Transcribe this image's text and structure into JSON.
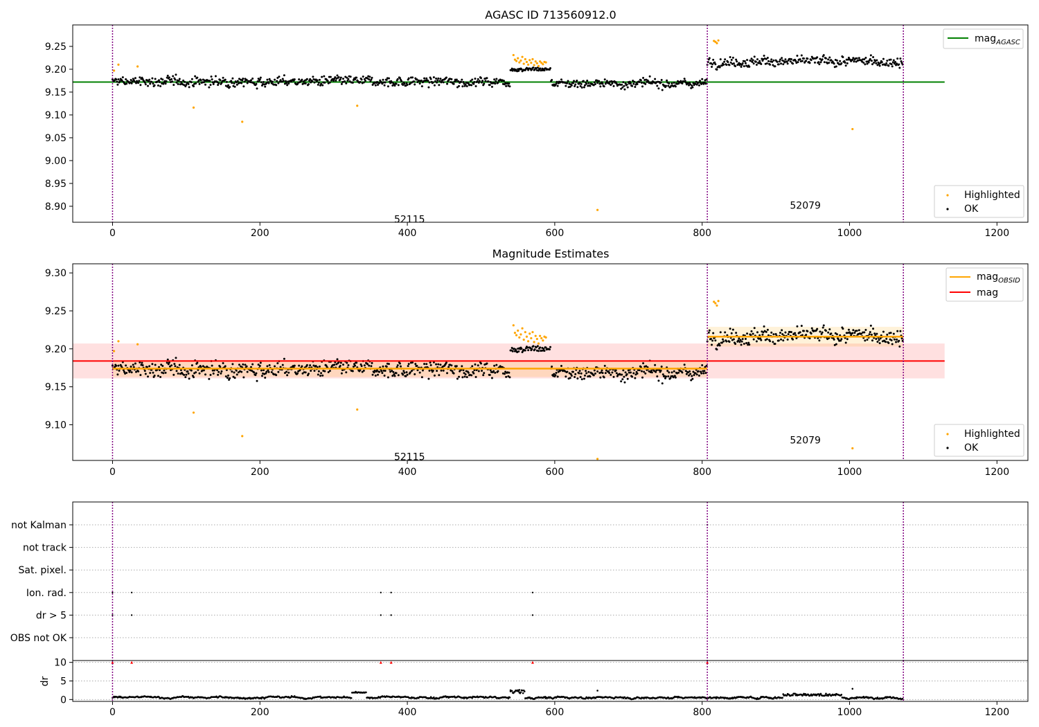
{
  "colors": {
    "ok": "#000000",
    "highlighted": "#ffa500",
    "mag_agasc_line": "#008000",
    "mag_obsid_line": "#ffa500",
    "mag_line": "#ff0000",
    "obsid_boundary": "#800080",
    "dr_flag": "#ff0000"
  },
  "chart_data": [
    {
      "type": "scatter",
      "title": "AGASC ID 713560912.0",
      "xlabel": "",
      "ylabel": "",
      "xlim": [
        -54,
        1242
      ],
      "ylim": [
        8.865,
        9.297
      ],
      "xticks": [
        0,
        200,
        400,
        600,
        800,
        1000,
        1200
      ],
      "yticks": [
        8.9,
        8.95,
        9.0,
        9.05,
        9.1,
        9.15,
        9.2,
        9.25
      ],
      "ytick_labels": [
        "8.90",
        "8.95",
        "9.00",
        "9.05",
        "9.10",
        "9.15",
        "9.20",
        "9.25"
      ],
      "obsid_boundaries": [
        0,
        807,
        1073
      ],
      "obsid_labels": [
        {
          "text": "52115",
          "x": 403,
          "y": 8.872
        },
        {
          "text": "52079",
          "x": 940,
          "y": 8.902
        }
      ],
      "mag_agasc": {
        "value": 9.172,
        "x_range": [
          -54,
          1129
        ]
      },
      "legend_top": {
        "position": "top-right",
        "entries": [
          {
            "label": "mag",
            "sub": "AGASC",
            "color": "#008000"
          }
        ]
      },
      "legend_bottom": {
        "position": "bottom-right",
        "entries": [
          {
            "label": "Highlighted",
            "color": "#ffa500"
          },
          {
            "label": "OK",
            "color": "#000000"
          }
        ]
      },
      "series": [
        {
          "name": "OK",
          "segments": [
            {
              "x_range": [
                0,
                540
              ],
              "mean": 9.173,
              "spread": 0.014
            },
            {
              "x_range": [
                540,
                595
              ],
              "mean": 9.2,
              "spread": 0.006
            },
            {
              "x_range": [
                595,
                807
              ],
              "mean": 9.169,
              "spread": 0.012
            },
            {
              "x_range": [
                807,
                1073
              ],
              "mean": 9.217,
              "spread": 0.014
            }
          ],
          "count": 1073
        },
        {
          "name": "Highlighted",
          "points": [
            [
              2,
              9.197
            ],
            [
              8,
              9.21
            ],
            [
              34,
              9.206
            ],
            [
              110,
              9.116
            ],
            [
              176,
              9.085
            ],
            [
              332,
              9.12
            ],
            [
              544,
              9.231
            ],
            [
              546,
              9.221
            ],
            [
              548,
              9.218
            ],
            [
              550,
              9.224
            ],
            [
              552,
              9.215
            ],
            [
              554,
              9.219
            ],
            [
              556,
              9.227
            ],
            [
              558,
              9.212
            ],
            [
              560,
              9.222
            ],
            [
              562,
              9.216
            ],
            [
              564,
              9.21
            ],
            [
              566,
              9.22
            ],
            [
              568,
              9.214
            ],
            [
              570,
              9.222
            ],
            [
              572,
              9.209
            ],
            [
              574,
              9.217
            ],
            [
              576,
              9.213
            ],
            [
              578,
              9.207
            ],
            [
              580,
              9.217
            ],
            [
              582,
              9.214
            ],
            [
              584,
              9.211
            ],
            [
              586,
              9.216
            ],
            [
              588,
              9.215
            ],
            [
              658,
              8.892
            ],
            [
              816,
              9.262
            ],
            [
              818,
              9.26
            ],
            [
              820,
              9.257
            ],
            [
              822,
              9.263
            ],
            [
              1004,
              9.069
            ]
          ]
        }
      ]
    },
    {
      "type": "scatter",
      "title": "Magnitude Estimates",
      "xlabel": "",
      "ylabel": "",
      "xlim": [
        -54,
        1242
      ],
      "ylim": [
        9.053,
        9.312
      ],
      "xticks": [
        0,
        200,
        400,
        600,
        800,
        1000,
        1200
      ],
      "yticks": [
        9.1,
        9.15,
        9.2,
        9.25,
        9.3
      ],
      "ytick_labels": [
        "9.10",
        "9.15",
        "9.20",
        "9.25",
        "9.30"
      ],
      "obsid_boundaries": [
        0,
        807,
        1073
      ],
      "obsid_labels": [
        {
          "text": "52115",
          "x": 403,
          "y": 9.058
        },
        {
          "text": "52079",
          "x": 940,
          "y": 9.08
        }
      ],
      "mag": {
        "value": 9.184,
        "band": [
          9.161,
          9.207
        ],
        "x_range": [
          -54,
          1129
        ]
      },
      "mag_obsid": [
        {
          "x_range": [
            0,
            807
          ],
          "value": 9.174,
          "band": [
            9.163,
            9.185
          ]
        },
        {
          "x_range": [
            807,
            1073
          ],
          "value": 9.216,
          "band": [
            9.203,
            9.229
          ]
        }
      ],
      "legend_top": {
        "position": "top-right",
        "entries": [
          {
            "label": "mag",
            "sub": "OBSID",
            "color": "#ffa500"
          },
          {
            "label": "mag",
            "sub": "",
            "color": "#ff0000"
          }
        ]
      },
      "legend_bottom": {
        "position": "bottom-right",
        "entries": [
          {
            "label": "Highlighted",
            "color": "#ffa500"
          },
          {
            "label": "OK",
            "color": "#000000"
          }
        ]
      },
      "series": [
        {
          "name": "OK",
          "same_as_panel": 0
        },
        {
          "name": "Highlighted",
          "same_as_panel": 0,
          "clipped_below": [
            [
              658,
              9.055
            ]
          ]
        }
      ]
    },
    {
      "type": "scatter",
      "title": "",
      "xlabel": "",
      "ylabel": "",
      "xlim": [
        -54,
        1242
      ],
      "categories": [
        "not Kalman",
        "not track",
        "Sat. pixel.",
        "Ion. rad.",
        "dr > 5",
        "OBS not OK"
      ],
      "obsid_boundaries": [
        0,
        807,
        1073
      ],
      "flags": [
        {
          "category": "not Kalman",
          "x": [
            807
          ]
        },
        {
          "category": "Ion. rad.",
          "x": [
            0,
            26,
            364,
            378,
            570
          ]
        },
        {
          "category": "dr > 5",
          "x": [
            0,
            26,
            364,
            378,
            570
          ]
        }
      ]
    },
    {
      "type": "scatter",
      "title": "",
      "xlabel": "",
      "ylabel": "dr",
      "xlim": [
        -54,
        1242
      ],
      "ylim": [
        -0.5,
        10.5
      ],
      "xticks": [
        0,
        200,
        400,
        600,
        800,
        1000,
        1200
      ],
      "yticks": [
        0,
        5,
        10
      ],
      "ytick_labels": [
        "0",
        "5",
        "10"
      ],
      "obsid_boundaries": [
        0,
        807,
        1073
      ],
      "series": [
        {
          "name": "dr",
          "count": 1073,
          "typical_range": [
            0,
            1.5
          ],
          "notable": [
            [
              330,
              2.1
            ],
            [
              540,
              2.2
            ],
            [
              552,
              2.6
            ],
            [
              658,
              2.4
            ],
            [
              1004,
              2.9
            ]
          ]
        },
        {
          "name": "dr clipped",
          "color": "#ff0000",
          "x": [
            0,
            26,
            364,
            378,
            570,
            807
          ],
          "value": 10
        }
      ]
    }
  ]
}
